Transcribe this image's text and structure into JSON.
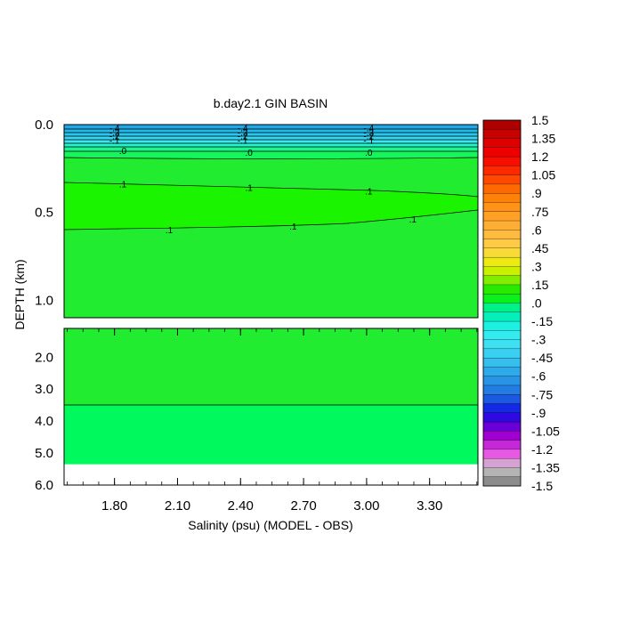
{
  "chart_data": {
    "type": "heatmap",
    "title": "b.day2.1 GIN BASIN",
    "xlabel": "Salinity (psu) (MODEL - OBS)",
    "ylabel": "DEPTH (km)",
    "x_ticks": [
      "1.80",
      "2.10",
      "2.40",
      "2.70",
      "3.00",
      "3.30"
    ],
    "x_tick_values": [
      1.8,
      2.1,
      2.4,
      2.7,
      3.0,
      3.3
    ],
    "xlim": [
      1.56,
      3.53
    ],
    "upper_panel": {
      "ylim": [
        0.0,
        1.1
      ],
      "y_ticks": [
        "0.0",
        "0.5",
        "1.0"
      ],
      "y_tick_values": [
        0.0,
        0.5,
        1.0
      ]
    },
    "lower_panel": {
      "ylim": [
        1.1,
        6.0
      ],
      "y_ticks": [
        "2.0",
        "3.0",
        "4.0",
        "5.0",
        "6.0"
      ],
      "y_tick_values": [
        2.0,
        3.0,
        4.0,
        5.0,
        6.0
      ],
      "data_bottom_depth": 5.35
    },
    "colorbar": {
      "min": -1.5,
      "max": 1.5,
      "step": 0.075,
      "labels": [
        "1.5",
        "1.35",
        "1.2",
        "1.05",
        ".9",
        ".75",
        ".6",
        ".45",
        ".3",
        ".15",
        ".0",
        "-.15",
        "-.3",
        "-.45",
        "-.6",
        "-.75",
        "-.9",
        "-1.05",
        "-1.2",
        "-1.35",
        "-1.5"
      ]
    },
    "contour_labels": [
      {
        "text": "-.4",
        "x": 1.8,
        "depth": 0.02
      },
      {
        "text": "-.3",
        "x": 1.8,
        "depth": 0.045
      },
      {
        "text": "-.2",
        "x": 1.8,
        "depth": 0.065
      },
      {
        "text": "-.1",
        "x": 1.8,
        "depth": 0.09
      },
      {
        "text": ".0",
        "x": 1.84,
        "depth": 0.15
      },
      {
        "text": "-.4",
        "x": 2.41,
        "depth": 0.02
      },
      {
        "text": "-.3",
        "x": 2.41,
        "depth": 0.045
      },
      {
        "text": "-.2",
        "x": 2.41,
        "depth": 0.065
      },
      {
        "text": "-.1",
        "x": 2.41,
        "depth": 0.09
      },
      {
        "text": ".0",
        "x": 2.44,
        "depth": 0.16
      },
      {
        "text": "-.4",
        "x": 3.01,
        "depth": 0.02
      },
      {
        "text": "-.3",
        "x": 3.01,
        "depth": 0.045
      },
      {
        "text": "-.2",
        "x": 3.01,
        "depth": 0.065
      },
      {
        "text": "-.1",
        "x": 3.01,
        "depth": 0.09
      },
      {
        "text": ".0",
        "x": 3.01,
        "depth": 0.16
      },
      {
        "text": ".1",
        "x": 1.84,
        "depth": 0.34
      },
      {
        "text": ".1",
        "x": 2.44,
        "depth": 0.36
      },
      {
        "text": ".1",
        "x": 3.01,
        "depth": 0.38
      },
      {
        "text": ".1",
        "x": 2.06,
        "depth": 0.6
      },
      {
        "text": ".1",
        "x": 2.65,
        "depth": 0.58
      },
      {
        "text": ".1",
        "x": 3.22,
        "depth": 0.54
      }
    ],
    "grid": false,
    "legend": "right"
  }
}
